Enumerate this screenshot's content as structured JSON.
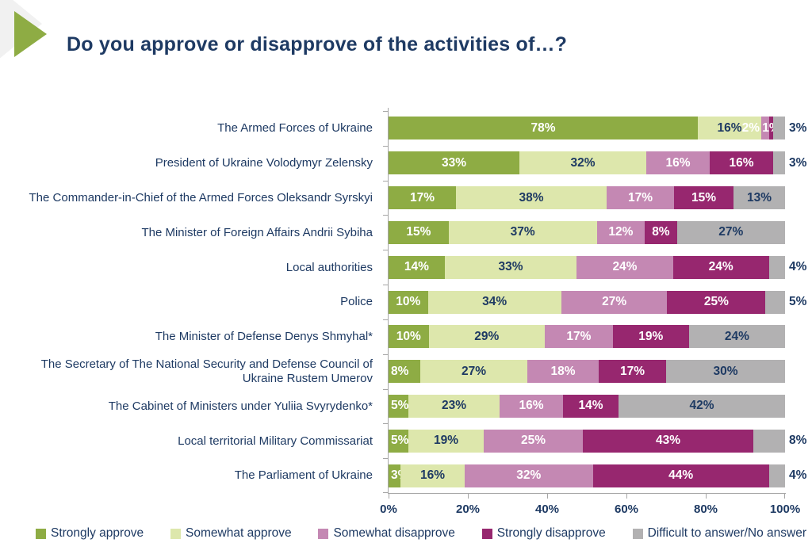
{
  "colors": {
    "navy_text": "#1e3a63",
    "axis_gray": "#a6a6a6",
    "deco_green": "#8eac44",
    "deco_gray": "#f1f1f1",
    "white": "#ffffff"
  },
  "chart_data": {
    "type": "bar",
    "stacked": true,
    "orientation": "horizontal",
    "title": "Do you approve or disapprove of the activities of…?",
    "unit": "%",
    "legend_position": "bottom",
    "grid": false,
    "x_axis": {
      "range": [
        0,
        100
      ],
      "tick_values": [
        0,
        20,
        40,
        60,
        80,
        100
      ],
      "tick_labels": [
        "0%",
        "20%",
        "40%",
        "60%",
        "80%",
        "100%"
      ]
    },
    "categories": [
      "The Armed Forces of Ukraine",
      "President of Ukraine Volodymyr Zelensky",
      "The Commander-in-Chief of the Armed Forces Oleksandr Syrskyi",
      "The Minister of Foreign Affairs Andrii Sybiha",
      "Local authorities",
      "Police",
      "The Minister of Defense Denys Shmyhal*",
      "The Secretary of The National Security and Defense Council of Ukraine Rustem Umerov",
      "The Cabinet of Ministers under Yuliia Svyrydenko*",
      "Local territorial Military Commissariat",
      "The Parliament of Ukraine"
    ],
    "series": [
      {
        "name": "Strongly approve",
        "color": "#8eac44",
        "label_color": "#ffffff",
        "values": [
          78,
          33,
          17,
          15,
          14,
          10,
          10,
          8,
          5,
          5,
          3
        ]
      },
      {
        "name": "Somewhat approve",
        "color": "#dde7ac",
        "label_color": "#1e3a63",
        "values": [
          16,
          32,
          38,
          37,
          33,
          34,
          29,
          27,
          23,
          19,
          16
        ]
      },
      {
        "name": "Somewhat disapprove",
        "color": "#c488b3",
        "label_color": "#ffffff",
        "values": [
          2,
          16,
          17,
          12,
          24,
          27,
          17,
          18,
          16,
          25,
          32
        ]
      },
      {
        "name": "Strongly disapprove",
        "color": "#97276f",
        "label_color": "#ffffff",
        "values": [
          1,
          16,
          15,
          8,
          24,
          25,
          19,
          17,
          14,
          43,
          44
        ]
      },
      {
        "name": "Difficult to answer/No answer",
        "color": "#b2b1b2",
        "label_color": "#1e3a63",
        "values": [
          3,
          3,
          13,
          27,
          4,
          5,
          24,
          30,
          42,
          8,
          4
        ]
      }
    ]
  }
}
